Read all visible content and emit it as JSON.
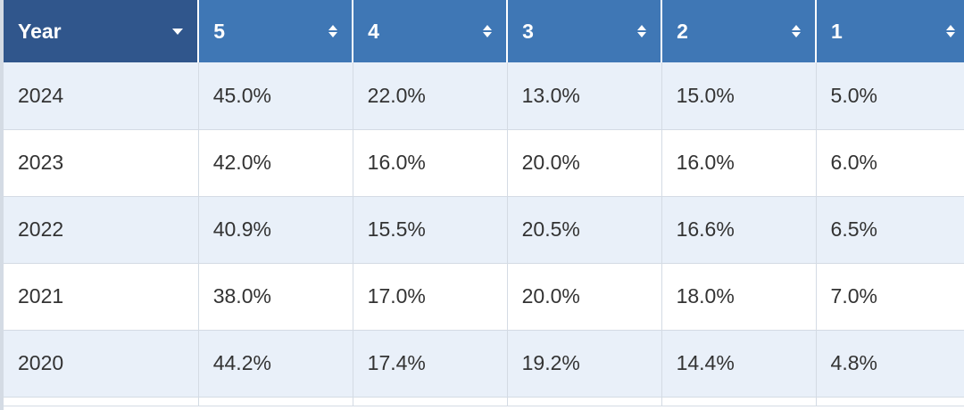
{
  "table": {
    "columns": [
      {
        "key": "year",
        "label": "Year",
        "control": "dropdown"
      },
      {
        "key": "r5",
        "label": "5",
        "control": "sort"
      },
      {
        "key": "r4",
        "label": "4",
        "control": "sort"
      },
      {
        "key": "r3",
        "label": "3",
        "control": "sort"
      },
      {
        "key": "r2",
        "label": "2",
        "control": "sort"
      },
      {
        "key": "r1",
        "label": "1",
        "control": "sort"
      }
    ],
    "rows": [
      {
        "year": "2024",
        "r5": "45.0%",
        "r4": "22.0%",
        "r3": "13.0%",
        "r2": "15.0%",
        "r1": "5.0%"
      },
      {
        "year": "2023",
        "r5": "42.0%",
        "r4": "16.0%",
        "r3": "20.0%",
        "r2": "16.0%",
        "r1": "6.0%"
      },
      {
        "year": "2022",
        "r5": "40.9%",
        "r4": "15.5%",
        "r3": "20.5%",
        "r2": "16.6%",
        "r1": "6.5%"
      },
      {
        "year": "2021",
        "r5": "38.0%",
        "r4": "17.0%",
        "r3": "20.0%",
        "r2": "18.0%",
        "r1": "7.0%"
      },
      {
        "year": "2020",
        "r5": "44.2%",
        "r4": "17.4%",
        "r3": "19.2%",
        "r2": "14.4%",
        "r1": "4.8%"
      }
    ]
  },
  "colors": {
    "header": "#3f77b5",
    "header_active": "#30568c",
    "row_alt": "#e9f0f9",
    "border": "#d4dbe4",
    "text": "#333333"
  },
  "icons": {
    "year_header": "chevron-down-icon",
    "value_header": "sort-icon"
  }
}
